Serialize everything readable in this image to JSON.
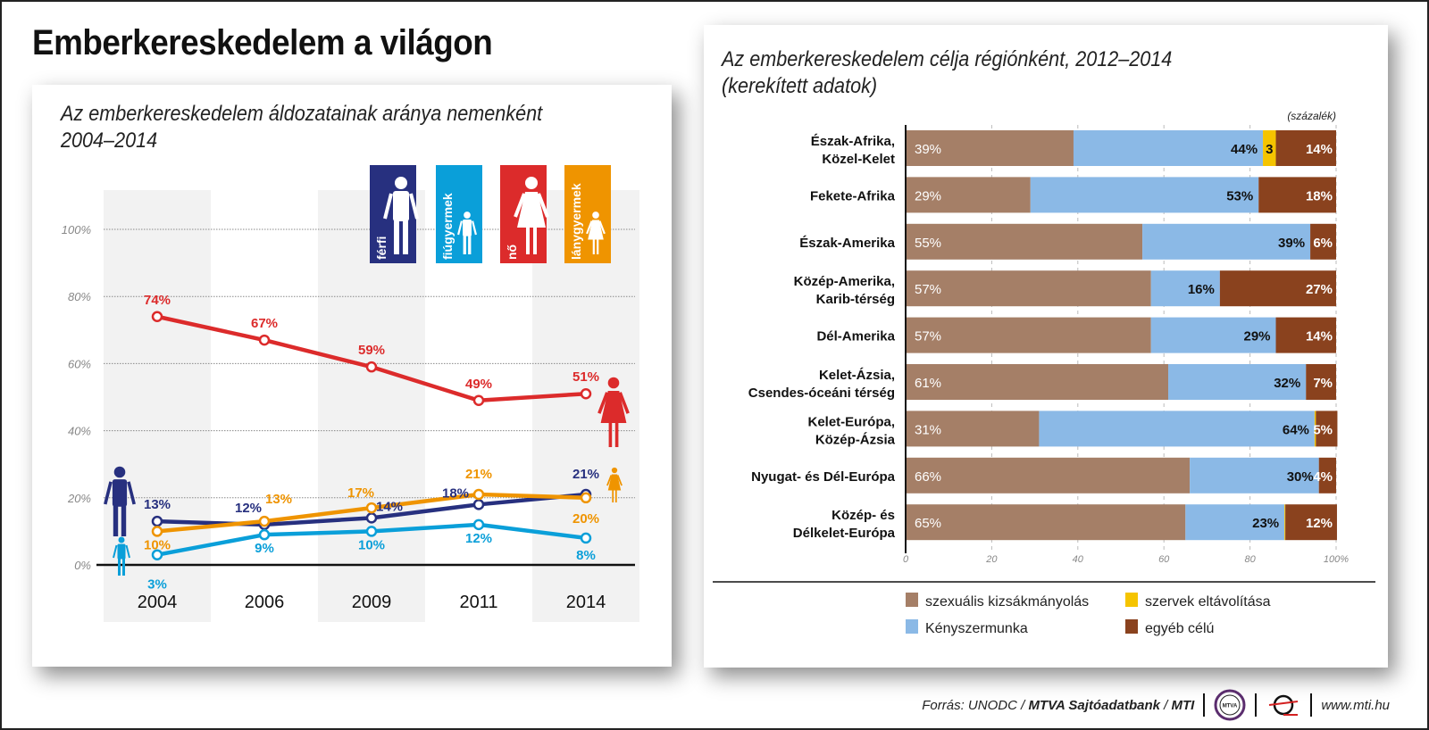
{
  "page": {
    "title": "Emberkereskedelem a világon",
    "footer": {
      "source_prefix": "Forrás: UNODC / ",
      "source_bold": "MTVA Sajtóadatbank",
      "source_mid": " / ",
      "source_bold2": "MTI",
      "url": "www.mti.hu",
      "logo1_label": "MTVA"
    }
  },
  "colors": {
    "ferfi": "#27307f",
    "fiugyermek": "#0a9fd9",
    "no": "#dc2b2b",
    "lanygyermek": "#ef9400",
    "szexualis": "#a57f67",
    "kenyszer": "#8bb9e6",
    "szervek": "#f5c400",
    "egyeb": "#8a421e"
  },
  "chart_data": [
    {
      "type": "line",
      "title": "Az emberkereskedelem áldozatainak aránya nemenként",
      "subtitle": "2004–2014",
      "x": [
        "2004",
        "2006",
        "2009",
        "2011",
        "2014"
      ],
      "ylim": [
        0,
        100
      ],
      "yticks": [
        "0%",
        "20%",
        "40%",
        "60%",
        "80%",
        "100%"
      ],
      "grid": true,
      "series": [
        {
          "key": "no",
          "name": "nő",
          "values": [
            74,
            67,
            59,
            49,
            51
          ],
          "labels": [
            "74%",
            "67%",
            "59%",
            "49%",
            "51%"
          ]
        },
        {
          "key": "ferfi",
          "name": "férfi",
          "values": [
            13,
            12,
            14,
            18,
            21
          ],
          "labels": [
            "13%",
            "12%",
            "14%",
            "18%",
            "21%"
          ]
        },
        {
          "key": "lanygyermek",
          "name": "lánygyermek",
          "values": [
            10,
            13,
            17,
            21,
            20
          ],
          "labels": [
            "10%",
            "13%",
            "17%",
            "21%",
            "20%"
          ]
        },
        {
          "key": "fiugyermek",
          "name": "fiúgyermek",
          "values": [
            3,
            9,
            10,
            12,
            8
          ],
          "labels": [
            "3%",
            "9%",
            "10%",
            "12%",
            "8%"
          ]
        }
      ],
      "legend": [
        {
          "key": "ferfi",
          "label": "férfi"
        },
        {
          "key": "fiugyermek",
          "label": "fiúgyermek"
        },
        {
          "key": "no",
          "label": "nő"
        },
        {
          "key": "lanygyermek",
          "label": "lánygyermek"
        }
      ],
      "legend_placement": "top-right"
    },
    {
      "type": "bar",
      "stacked": true,
      "orientation": "horizontal",
      "title": "Az emberkereskedelem célja régiónként, 2012–2014",
      "subtitle": "(kerekített adatok)",
      "unit_label": "(százalék)",
      "xlim": [
        0,
        100
      ],
      "xticks": [
        "0",
        "20",
        "40",
        "60",
        "80",
        "100%"
      ],
      "categories": [
        [
          "Észak-Afrika,",
          "Közel-Kelet"
        ],
        [
          "Fekete-Afrika"
        ],
        [
          "Észak-Amerika"
        ],
        [
          "Közép-Amerika,",
          "Karib-térség"
        ],
        [
          "Dél-Amerika"
        ],
        [
          "Kelet-Ázsia,",
          "Csendes-óceáni térség"
        ],
        [
          "Kelet-Európa,",
          "Közép-Ázsia"
        ],
        [
          "Nyugat- és Dél-Európa"
        ],
        [
          "Közép- és",
          "Délkelet-Európa"
        ]
      ],
      "series": [
        {
          "key": "szexualis",
          "name": "szexuális kizsákmányolás",
          "values": [
            39,
            29,
            55,
            57,
            57,
            61,
            31,
            66,
            65
          ]
        },
        {
          "key": "kenyszer",
          "name": "Kényszermunka",
          "values": [
            44,
            53,
            39,
            16,
            29,
            32,
            64,
            30,
            23
          ]
        },
        {
          "key": "szervek",
          "name": "szervek eltávolítása",
          "values": [
            3,
            0,
            0,
            0,
            0,
            0,
            0.3,
            0,
            0.2
          ]
        },
        {
          "key": "egyeb",
          "name": "egyéb célú",
          "values": [
            14,
            18,
            6,
            27,
            14,
            7,
            5,
            4,
            12
          ]
        }
      ],
      "value_labels": [
        [
          "39%",
          "44%",
          "3",
          "14%"
        ],
        [
          "29%",
          "53%",
          "",
          "18%"
        ],
        [
          "55%",
          "39%",
          "",
          "6%"
        ],
        [
          "57%",
          "16%",
          "",
          "27%"
        ],
        [
          "57%",
          "29%",
          "",
          "14%"
        ],
        [
          "61%",
          "32%",
          "",
          "7%"
        ],
        [
          "31%",
          "64%",
          "",
          "5%"
        ],
        [
          "66%",
          "30%",
          "",
          "4%"
        ],
        [
          "65%",
          "23%",
          "",
          "12%"
        ]
      ],
      "legend": [
        {
          "key": "szexualis",
          "label": "szexuális kizsákmányolás"
        },
        {
          "key": "szervek",
          "label": "szervek eltávolítása"
        },
        {
          "key": "kenyszer",
          "label": "Kényszermunka"
        },
        {
          "key": "egyeb",
          "label": "egyéb célú"
        }
      ],
      "legend_placement": "bottom"
    }
  ]
}
